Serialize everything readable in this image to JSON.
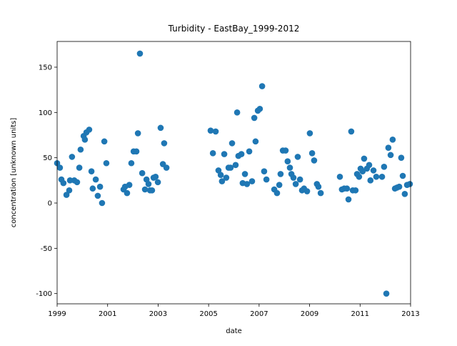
{
  "chart_data": {
    "type": "scatter",
    "title": "Turbidity - EastBay_1999-2012",
    "x_label": "date",
    "y_label": "concentration [unknown units]",
    "color": "#1f77b4",
    "xlim": [
      1999,
      2013
    ],
    "xticks": [
      1999,
      2001,
      2003,
      2005,
      2007,
      2009,
      2011,
      2013
    ],
    "ylim": [
      -111.3,
      178.4
    ],
    "yticks": [
      -100,
      -50,
      0,
      50,
      100,
      150
    ],
    "x": [
      1999.0,
      1999.11,
      1999.17,
      1999.25,
      1999.37,
      1999.48,
      1999.51,
      1999.59,
      1999.68,
      1999.79,
      1999.88,
      1999.93,
      2000.05,
      2000.1,
      2000.16,
      2000.27,
      2000.36,
      2000.41,
      2000.53,
      2000.61,
      2000.7,
      2000.78,
      2000.87,
      2000.95,
      2001.63,
      2001.69,
      2001.77,
      2001.86,
      2001.94,
      2002.03,
      2002.14,
      2002.2,
      2002.28,
      2002.37,
      2002.48,
      2002.54,
      2002.62,
      2002.68,
      2002.76,
      2002.82,
      2002.9,
      2002.99,
      2003.1,
      2003.19,
      2003.24,
      2003.33,
      2005.08,
      2005.17,
      2005.28,
      2005.39,
      2005.48,
      2005.53,
      2005.62,
      2005.7,
      2005.79,
      2005.87,
      2005.93,
      2006.07,
      2006.13,
      2006.18,
      2006.3,
      2006.35,
      2006.44,
      2006.52,
      2006.61,
      2006.72,
      2006.81,
      2006.86,
      2006.95,
      2007.03,
      2007.12,
      2007.2,
      2007.29,
      2007.6,
      2007.71,
      2007.8,
      2007.85,
      2007.94,
      2008.05,
      2008.13,
      2008.22,
      2008.28,
      2008.36,
      2008.45,
      2008.53,
      2008.62,
      2008.7,
      2008.78,
      2008.9,
      2009.01,
      2009.1,
      2009.18,
      2009.29,
      2009.35,
      2009.44,
      2010.2,
      2010.28,
      2010.37,
      2010.48,
      2010.54,
      2010.65,
      2010.71,
      2010.82,
      2010.88,
      2010.96,
      2011.02,
      2011.1,
      2011.16,
      2011.27,
      2011.36,
      2011.41,
      2011.53,
      2011.64,
      2011.87,
      2011.95,
      2012.04,
      2012.12,
      2012.21,
      2012.29,
      2012.38,
      2012.46,
      2012.55,
      2012.63,
      2012.69,
      2012.77,
      2012.86,
      2012.97
    ],
    "values": [
      44,
      39,
      26,
      22,
      9,
      14,
      25,
      51,
      25,
      23,
      39,
      59,
      74,
      70,
      78,
      81,
      35,
      16,
      26,
      8,
      18,
      0,
      68,
      44,
      15,
      18,
      11,
      20,
      44,
      57,
      57,
      77,
      165,
      33,
      15,
      26,
      21,
      14,
      14,
      28,
      29,
      23,
      83,
      43,
      66,
      39,
      80,
      55,
      79,
      36,
      31,
      24,
      54,
      28,
      39,
      39,
      66,
      42,
      100,
      52,
      54,
      22,
      32,
      21,
      57,
      24,
      94,
      68,
      102,
      104,
      129,
      35,
      26,
      15,
      11,
      20,
      32,
      58,
      58,
      46,
      39,
      32,
      28,
      21,
      51,
      26,
      14,
      16,
      13,
      77,
      55,
      47,
      21,
      18,
      11,
      29,
      15,
      16,
      16,
      4,
      79,
      14,
      14,
      32,
      29,
      38,
      35,
      49,
      38,
      42,
      25,
      36,
      29,
      29,
      40,
      -100,
      61,
      53,
      70,
      16,
      17,
      18,
      50,
      30,
      10,
      20,
      21
    ]
  }
}
